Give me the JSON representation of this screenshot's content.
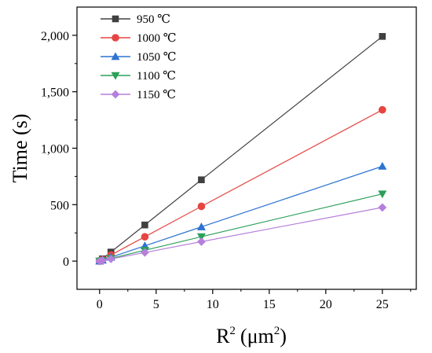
{
  "chart_data": {
    "type": "line",
    "xlabel": "R",
    "xlabel_sup": "2",
    "xlabel_unit": "(μm",
    "xlabel_unit_sup": "2",
    "xlabel_unit_close": ")",
    "ylabel": "Time (s)",
    "xlim": [
      -2,
      28
    ],
    "ylim": [
      -250,
      2250
    ],
    "xticks": [
      0,
      5,
      10,
      15,
      20,
      25
    ],
    "xtick_labels": [
      "0",
      "5",
      "10",
      "15",
      "20",
      "25"
    ],
    "yticks": [
      0,
      500,
      1000,
      1500,
      2000
    ],
    "ytick_labels": [
      "0",
      "500",
      "1,000",
      "1,500",
      "2,000"
    ],
    "grid": false,
    "legend_position": "top-left",
    "x": [
      0,
      0.25,
      1,
      4,
      9,
      25
    ],
    "series": [
      {
        "name": "950 ℃",
        "color": "#404040",
        "marker": "square",
        "values": [
          0,
          20,
          80,
          320,
          720,
          1990
        ]
      },
      {
        "name": "1000 ℃",
        "color": "#e64541",
        "marker": "circle",
        "values": [
          0,
          14,
          54,
          215,
          485,
          1340
        ]
      },
      {
        "name": "1050 ℃",
        "color": "#2c73d2",
        "marker": "triangle-up",
        "values": [
          0,
          8,
          34,
          135,
          303,
          840
        ]
      },
      {
        "name": "1100 ℃",
        "color": "#2ca05a",
        "marker": "triangle-down",
        "values": [
          0,
          6,
          24,
          96,
          216,
          595
        ]
      },
      {
        "name": "1150 ℃",
        "color": "#b67fdc",
        "marker": "diamond",
        "values": [
          0,
          5,
          19,
          76,
          172,
          475
        ]
      }
    ]
  }
}
